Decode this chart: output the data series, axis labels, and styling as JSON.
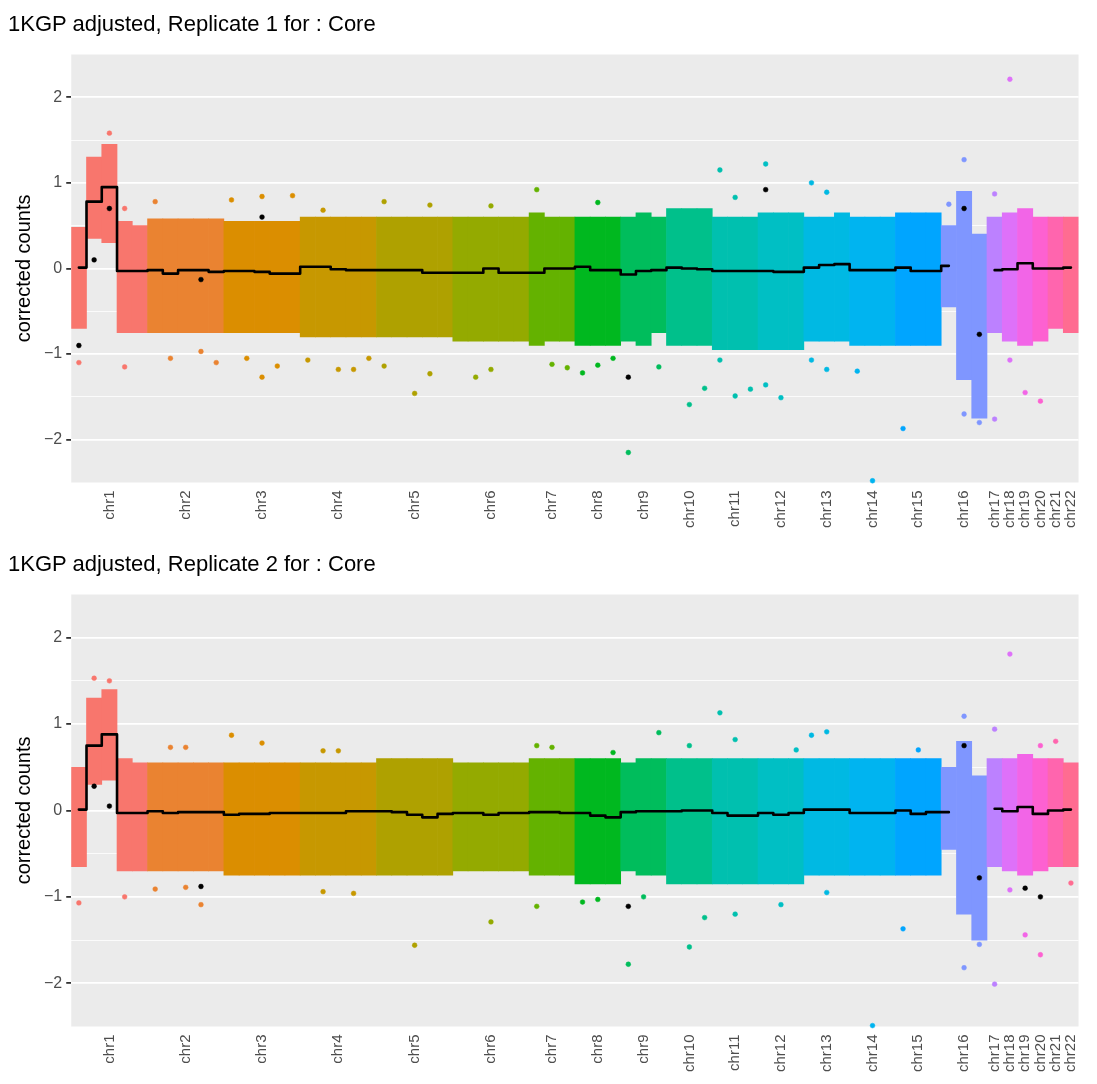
{
  "chart_data": [
    {
      "type": "bar",
      "title": "1KGP adjusted, Replicate 1 for : Core",
      "ylabel": "corrected counts",
      "ylim": [
        -2.5,
        2.5
      ],
      "grid": "y",
      "legend": false,
      "marker": "circle",
      "categories": [
        null,
        null,
        "chr1",
        null,
        null,
        null,
        null,
        "chr2",
        null,
        null,
        null,
        null,
        "chr3",
        null,
        null,
        null,
        null,
        "chr4",
        null,
        null,
        null,
        null,
        "chr5",
        null,
        null,
        null,
        null,
        "chr6",
        null,
        null,
        null,
        "chr7",
        null,
        null,
        "chr8",
        null,
        null,
        "chr9",
        null,
        null,
        "chr10",
        null,
        null,
        "chr11",
        null,
        null,
        "chr12",
        null,
        null,
        "chr13",
        null,
        null,
        "chr14",
        null,
        null,
        "chr15",
        null,
        null,
        "chr16",
        null,
        "chr17",
        "chr18",
        "chr19",
        "chr20",
        "chr21",
        "chr22"
      ],
      "yticks": [
        {
          "value": -2,
          "label": "−2"
        },
        {
          "value": -1.5,
          "label": null
        },
        {
          "value": -1,
          "label": "−1"
        },
        {
          "value": -0.5,
          "label": null
        },
        0,
        {
          "value": 0.5,
          "label": null
        },
        1,
        {
          "value": 1.5,
          "label": null
        },
        2
      ],
      "series": [
        {
          "colors": [
            "#f8766d",
            "#f8766d",
            "#f8766d",
            "#f8766d",
            "#f8766d",
            "#ea8331",
            "#ea8331",
            "#ea8331",
            "#ea8331",
            "#ea8331",
            "#db8e00",
            "#db8e00",
            "#db8e00",
            "#db8e00",
            "#db8e00",
            "#c79800",
            "#c79800",
            "#c79800",
            "#c79800",
            "#c79800",
            "#afa100",
            "#afa100",
            "#afa100",
            "#afa100",
            "#afa100",
            "#94aa00",
            "#94aa00",
            "#94aa00",
            "#94aa00",
            "#94aa00",
            "#64b200",
            "#64b200",
            "#64b200",
            "#00b81f",
            "#00b81f",
            "#00b81f",
            "#00bd5c",
            "#00bd5c",
            "#00bd5c",
            "#00c08b",
            "#00c08b",
            "#00c08b",
            "#00c0af",
            "#00c0af",
            "#00c0af",
            "#00bfc4",
            "#00bfc4",
            "#00bfc4",
            "#00b9e3",
            "#00b9e3",
            "#00b9e3",
            "#00b4f0",
            "#00b4f0",
            "#00b4f0",
            "#00a5ff",
            "#00a5ff",
            "#00a5ff",
            "#7f96ff",
            "#7f96ff",
            "#7f96ff",
            "#bc81ff",
            "#de71f9",
            "#f265e7",
            "#fd61d1",
            "#ff65ae",
            "#ff6c91"
          ],
          "base": [
            -0.7,
            0.35,
            0.3,
            -0.75,
            -0.75,
            -0.75,
            -0.75,
            -0.75,
            -0.75,
            -0.75,
            -0.75,
            -0.75,
            -0.75,
            -0.75,
            -0.75,
            -0.8,
            -0.8,
            -0.8,
            -0.8,
            -0.8,
            -0.8,
            -0.8,
            -0.8,
            -0.8,
            -0.8,
            -0.85,
            -0.85,
            -0.85,
            -0.85,
            -0.85,
            -0.9,
            -0.85,
            -0.85,
            -0.9,
            -0.9,
            -0.9,
            -0.85,
            -0.9,
            -0.75,
            -0.9,
            -0.9,
            -0.9,
            -0.95,
            -0.95,
            -0.95,
            -0.95,
            -0.95,
            -0.95,
            -0.85,
            -0.85,
            -0.85,
            -0.9,
            -0.9,
            -0.9,
            -0.9,
            -0.9,
            -0.9,
            -0.45,
            -1.3,
            -1.75,
            -0.75,
            -0.85,
            -0.9,
            -0.85,
            -0.7,
            -0.75
          ],
          "values": [
            1.18,
            0.95,
            1.15,
            1.3,
            1.25,
            1.33,
            1.33,
            1.33,
            1.33,
            1.33,
            1.3,
            1.3,
            1.3,
            1.3,
            1.3,
            1.4,
            1.4,
            1.4,
            1.4,
            1.4,
            1.4,
            1.4,
            1.4,
            1.4,
            1.4,
            1.45,
            1.45,
            1.45,
            1.45,
            1.45,
            1.55,
            1.45,
            1.45,
            1.5,
            1.5,
            1.5,
            1.45,
            1.55,
            1.35,
            1.6,
            1.6,
            1.6,
            1.55,
            1.55,
            1.55,
            1.6,
            1.6,
            1.6,
            1.45,
            1.45,
            1.5,
            1.5,
            1.5,
            1.5,
            1.55,
            1.55,
            1.55,
            0.95,
            2.2,
            2.15,
            1.35,
            1.5,
            1.6,
            1.45,
            1.3,
            1.35
          ]
        },
        {
          "type": "step",
          "color": "#000000",
          "marker": "none",
          "values": [
            0.01,
            0.78,
            0.95,
            -0.03,
            -0.03,
            -0.02,
            -0.06,
            -0.02,
            -0.02,
            -0.04,
            -0.03,
            -0.03,
            -0.04,
            -0.06,
            -0.06,
            0.02,
            0.02,
            -0.01,
            -0.02,
            -0.02,
            -0.02,
            -0.02,
            -0.02,
            -0.05,
            -0.05,
            -0.05,
            -0.05,
            0.0,
            -0.05,
            -0.05,
            -0.05,
            0.0,
            0.0,
            0.02,
            -0.02,
            -0.02,
            -0.07,
            -0.03,
            -0.02,
            0.01,
            0.0,
            -0.01,
            -0.03,
            -0.03,
            -0.03,
            -0.03,
            -0.04,
            -0.04,
            0.01,
            0.04,
            0.05,
            -0.02,
            -0.02,
            -0.02,
            0.01,
            -0.03,
            -0.03,
            0.03,
            null,
            null,
            -0.02,
            -0.01,
            0.06,
            0.0,
            0.0,
            0.01
          ]
        },
        {
          "type": "scatter",
          "colors": [
            "#f8766d",
            "#f8766d",
            "#f8766d",
            "#f8766d",
            "#f8766d",
            "#ea8331",
            "#ea8331",
            "#ea8331",
            "#ea8331",
            "#ea8331",
            "#db8e00",
            "#db8e00",
            "#db8e00",
            "#db8e00",
            "#db8e00",
            "#c79800",
            "#c79800",
            "#c79800",
            "#c79800",
            "#c79800",
            "#afa100",
            "#afa100",
            "#afa100",
            "#afa100",
            "#afa100",
            "#94aa00",
            "#94aa00",
            "#94aa00",
            "#94aa00",
            "#94aa00",
            "#64b200",
            "#64b200",
            "#64b200",
            "#00b81f",
            "#00b81f",
            "#00b81f",
            "#00bd5c",
            "#00bd5c",
            "#00bd5c",
            "#00c08b",
            "#00c08b",
            "#00c08b",
            "#00c0af",
            "#00c0af",
            "#00c0af",
            "#00bfc4",
            "#00bfc4",
            "#00bfc4",
            "#00b9e3",
            "#00b9e3",
            "#00b9e3",
            "#00b4f0",
            "#00b4f0",
            "#00b4f0",
            "#00a5ff",
            "#00a5ff",
            "#00a5ff",
            "#7f96ff",
            "#7f96ff",
            "#7f96ff",
            "#bc81ff",
            "#de71f9",
            "#f265e7",
            "#fd61d1",
            "#ff65ae",
            "#ff6c91"
          ],
          "values": [
            null,
            null,
            1.58,
            0.7,
            null,
            0.78,
            null,
            null,
            null,
            null,
            0.8,
            null,
            0.84,
            null,
            0.85,
            null,
            0.68,
            null,
            null,
            null,
            0.78,
            null,
            null,
            0.74,
            null,
            null,
            null,
            0.73,
            null,
            null,
            0.92,
            null,
            null,
            null,
            0.77,
            null,
            null,
            null,
            null,
            null,
            null,
            null,
            1.15,
            0.83,
            null,
            1.22,
            null,
            null,
            1.0,
            0.89,
            null,
            null,
            null,
            null,
            null,
            null,
            null,
            0.75,
            1.27,
            null,
            0.87,
            2.21,
            null,
            null,
            null,
            null
          ]
        },
        {
          "type": "scatter",
          "colors": [
            "#f8766d",
            "#f8766d",
            "#f8766d",
            "#f8766d",
            "#f8766d",
            "#ea8331",
            "#ea8331",
            "#ea8331",
            "#ea8331",
            "#ea8331",
            "#db8e00",
            "#db8e00",
            "#db8e00",
            "#db8e00",
            "#db8e00",
            "#c79800",
            "#c79800",
            "#c79800",
            "#c79800",
            "#c79800",
            "#afa100",
            "#afa100",
            "#afa100",
            "#afa100",
            "#afa100",
            "#94aa00",
            "#94aa00",
            "#94aa00",
            "#94aa00",
            "#94aa00",
            "#64b200",
            "#64b200",
            "#64b200",
            "#00b81f",
            "#00b81f",
            "#00b81f",
            "#00bd5c",
            "#00bd5c",
            "#00bd5c",
            "#00c08b",
            "#00c08b",
            "#00c08b",
            "#00c0af",
            "#00c0af",
            "#00c0af",
            "#00bfc4",
            "#00bfc4",
            "#00bfc4",
            "#00b9e3",
            "#00b9e3",
            "#00b9e3",
            "#00b4f0",
            "#00b4f0",
            "#00b4f0",
            "#00a5ff",
            "#00a5ff",
            "#00a5ff",
            "#7f96ff",
            "#7f96ff",
            "#7f96ff",
            "#bc81ff",
            "#de71f9",
            "#f265e7",
            "#fd61d1",
            "#ff65ae",
            "#ff6c91"
          ],
          "values": [
            -1.1,
            null,
            null,
            -1.15,
            null,
            null,
            -1.05,
            null,
            -0.97,
            -1.1,
            null,
            -1.05,
            -1.27,
            -1.14,
            null,
            -1.07,
            null,
            -1.18,
            -1.18,
            -1.05,
            -1.14,
            null,
            -1.46,
            -1.23,
            null,
            null,
            -1.27,
            -1.18,
            null,
            null,
            null,
            -1.12,
            -1.16,
            -1.22,
            -1.13,
            -1.05,
            -2.15,
            null,
            -1.15,
            null,
            -1.59,
            -1.4,
            -1.07,
            -1.49,
            -1.41,
            -1.36,
            -1.51,
            null,
            -1.07,
            -1.18,
            null,
            -1.2,
            -2.48,
            null,
            -1.87,
            null,
            null,
            null,
            -1.7,
            -1.8,
            -1.76,
            -1.07,
            -1.45,
            -1.55,
            null,
            null
          ]
        },
        {
          "type": "scatter",
          "color": "#000000",
          "values": [
            -0.9,
            0.1,
            0.7,
            null,
            null,
            null,
            null,
            null,
            -0.13,
            null,
            null,
            null,
            0.6,
            null,
            null,
            null,
            null,
            null,
            null,
            null,
            null,
            null,
            null,
            null,
            null,
            null,
            null,
            null,
            null,
            null,
            null,
            null,
            null,
            null,
            null,
            null,
            -1.27,
            null,
            null,
            null,
            null,
            null,
            null,
            null,
            null,
            0.92,
            null,
            null,
            null,
            null,
            null,
            null,
            null,
            null,
            null,
            null,
            null,
            null,
            0.7,
            -0.77,
            null,
            null,
            null,
            null,
            null,
            null
          ]
        }
      ]
    },
    {
      "type": "bar",
      "title": "1KGP adjusted, Replicate 2 for : Core",
      "ylabel": "corrected counts",
      "ylim": [
        -2.5,
        2.5
      ],
      "grid": "y",
      "legend": false,
      "marker": "circle",
      "categories": [
        null,
        null,
        "chr1",
        null,
        null,
        null,
        null,
        "chr2",
        null,
        null,
        null,
        null,
        "chr3",
        null,
        null,
        null,
        null,
        "chr4",
        null,
        null,
        null,
        null,
        "chr5",
        null,
        null,
        null,
        null,
        "chr6",
        null,
        null,
        null,
        "chr7",
        null,
        null,
        "chr8",
        null,
        null,
        "chr9",
        null,
        null,
        "chr10",
        null,
        null,
        "chr11",
        null,
        null,
        "chr12",
        null,
        null,
        "chr13",
        null,
        null,
        "chr14",
        null,
        null,
        "chr15",
        null,
        null,
        "chr16",
        null,
        "chr17",
        "chr18",
        "chr19",
        "chr20",
        "chr21",
        "chr22"
      ],
      "yticks": [
        {
          "value": -2,
          "label": "−2"
        },
        {
          "value": -1.5,
          "label": null
        },
        {
          "value": -1,
          "label": "−1"
        },
        {
          "value": -0.5,
          "label": null
        },
        0,
        {
          "value": 0.5,
          "label": null
        },
        1,
        {
          "value": 1.5,
          "label": null
        },
        2
      ],
      "series": [
        {
          "colors": [
            "#f8766d",
            "#f8766d",
            "#f8766d",
            "#f8766d",
            "#f8766d",
            "#ea8331",
            "#ea8331",
            "#ea8331",
            "#ea8331",
            "#ea8331",
            "#db8e00",
            "#db8e00",
            "#db8e00",
            "#db8e00",
            "#db8e00",
            "#c79800",
            "#c79800",
            "#c79800",
            "#c79800",
            "#c79800",
            "#afa100",
            "#afa100",
            "#afa100",
            "#afa100",
            "#afa100",
            "#94aa00",
            "#94aa00",
            "#94aa00",
            "#94aa00",
            "#94aa00",
            "#64b200",
            "#64b200",
            "#64b200",
            "#00b81f",
            "#00b81f",
            "#00b81f",
            "#00bd5c",
            "#00bd5c",
            "#00bd5c",
            "#00c08b",
            "#00c08b",
            "#00c08b",
            "#00c0af",
            "#00c0af",
            "#00c0af",
            "#00bfc4",
            "#00bfc4",
            "#00bfc4",
            "#00b9e3",
            "#00b9e3",
            "#00b9e3",
            "#00b4f0",
            "#00b4f0",
            "#00b4f0",
            "#00a5ff",
            "#00a5ff",
            "#00a5ff",
            "#7f96ff",
            "#7f96ff",
            "#7f96ff",
            "#bc81ff",
            "#de71f9",
            "#f265e7",
            "#fd61d1",
            "#ff65ae",
            "#ff6c91"
          ],
          "base": [
            -0.65,
            0.3,
            0.35,
            -0.7,
            -0.7,
            -0.7,
            -0.7,
            -0.7,
            -0.7,
            -0.7,
            -0.75,
            -0.75,
            -0.75,
            -0.75,
            -0.75,
            -0.75,
            -0.75,
            -0.75,
            -0.75,
            -0.75,
            -0.75,
            -0.75,
            -0.75,
            -0.75,
            -0.75,
            -0.7,
            -0.7,
            -0.7,
            -0.7,
            -0.7,
            -0.75,
            -0.75,
            -0.75,
            -0.85,
            -0.85,
            -0.85,
            -0.7,
            -0.75,
            -0.75,
            -0.85,
            -0.85,
            -0.85,
            -0.85,
            -0.85,
            -0.85,
            -0.85,
            -0.85,
            -0.85,
            -0.75,
            -0.75,
            -0.75,
            -0.75,
            -0.75,
            -0.75,
            -0.75,
            -0.75,
            -0.75,
            -0.45,
            -1.2,
            -1.5,
            -0.65,
            -0.7,
            -0.75,
            -0.7,
            -0.65,
            -0.65
          ],
          "values": [
            1.15,
            1.0,
            1.05,
            1.3,
            1.25,
            1.25,
            1.25,
            1.25,
            1.25,
            1.25,
            1.3,
            1.3,
            1.3,
            1.3,
            1.3,
            1.3,
            1.3,
            1.3,
            1.3,
            1.3,
            1.35,
            1.35,
            1.35,
            1.35,
            1.35,
            1.25,
            1.25,
            1.25,
            1.25,
            1.25,
            1.35,
            1.35,
            1.35,
            1.45,
            1.45,
            1.45,
            1.25,
            1.35,
            1.35,
            1.45,
            1.45,
            1.45,
            1.45,
            1.45,
            1.45,
            1.45,
            1.45,
            1.45,
            1.35,
            1.35,
            1.35,
            1.35,
            1.35,
            1.35,
            1.35,
            1.35,
            1.35,
            0.95,
            2.0,
            1.9,
            1.25,
            1.3,
            1.4,
            1.3,
            1.25,
            1.2
          ]
        },
        {
          "type": "step",
          "color": "#000000",
          "marker": "none",
          "values": [
            0.01,
            0.75,
            0.88,
            -0.03,
            -0.03,
            -0.01,
            -0.03,
            -0.02,
            -0.02,
            -0.02,
            -0.05,
            -0.04,
            -0.04,
            -0.03,
            -0.03,
            -0.03,
            -0.03,
            -0.03,
            -0.01,
            -0.01,
            -0.01,
            -0.02,
            -0.05,
            -0.08,
            -0.04,
            -0.03,
            -0.03,
            -0.05,
            -0.03,
            -0.03,
            -0.02,
            -0.02,
            -0.03,
            -0.03,
            -0.06,
            -0.08,
            -0.02,
            -0.01,
            -0.01,
            -0.01,
            0.0,
            0.0,
            -0.03,
            -0.06,
            -0.06,
            -0.03,
            -0.05,
            -0.03,
            0.01,
            0.01,
            0.01,
            -0.03,
            -0.03,
            -0.03,
            0.0,
            -0.04,
            -0.02,
            -0.02,
            null,
            null,
            0.02,
            -0.01,
            0.04,
            -0.04,
            0.0,
            0.01
          ]
        },
        {
          "type": "scatter",
          "colors": [
            "#f8766d",
            "#f8766d",
            "#f8766d",
            "#f8766d",
            "#f8766d",
            "#ea8331",
            "#ea8331",
            "#ea8331",
            "#ea8331",
            "#ea8331",
            "#db8e00",
            "#db8e00",
            "#db8e00",
            "#db8e00",
            "#db8e00",
            "#c79800",
            "#c79800",
            "#c79800",
            "#c79800",
            "#c79800",
            "#afa100",
            "#afa100",
            "#afa100",
            "#afa100",
            "#afa100",
            "#94aa00",
            "#94aa00",
            "#94aa00",
            "#94aa00",
            "#94aa00",
            "#64b200",
            "#64b200",
            "#64b200",
            "#00b81f",
            "#00b81f",
            "#00b81f",
            "#00bd5c",
            "#00bd5c",
            "#00bd5c",
            "#00c08b",
            "#00c08b",
            "#00c08b",
            "#00c0af",
            "#00c0af",
            "#00c0af",
            "#00bfc4",
            "#00bfc4",
            "#00bfc4",
            "#00b9e3",
            "#00b9e3",
            "#00b9e3",
            "#00b4f0",
            "#00b4f0",
            "#00b4f0",
            "#00a5ff",
            "#00a5ff",
            "#00a5ff",
            "#7f96ff",
            "#7f96ff",
            "#7f96ff",
            "#bc81ff",
            "#de71f9",
            "#f265e7",
            "#fd61d1",
            "#ff65ae",
            "#ff6c91"
          ],
          "values": [
            null,
            1.53,
            1.5,
            null,
            null,
            null,
            0.73,
            0.73,
            null,
            null,
            0.87,
            null,
            0.78,
            null,
            null,
            null,
            0.69,
            0.69,
            null,
            null,
            null,
            null,
            null,
            null,
            null,
            null,
            null,
            null,
            null,
            null,
            0.75,
            0.73,
            null,
            null,
            null,
            0.67,
            null,
            null,
            0.9,
            null,
            0.75,
            null,
            1.13,
            0.82,
            null,
            null,
            null,
            0.7,
            0.87,
            0.91,
            null,
            null,
            null,
            null,
            null,
            0.7,
            null,
            null,
            1.09,
            null,
            0.94,
            1.81,
            null,
            0.75,
            0.8,
            null
          ]
        },
        {
          "type": "scatter",
          "colors": [
            "#f8766d",
            "#f8766d",
            "#f8766d",
            "#f8766d",
            "#f8766d",
            "#ea8331",
            "#ea8331",
            "#ea8331",
            "#ea8331",
            "#ea8331",
            "#db8e00",
            "#db8e00",
            "#db8e00",
            "#db8e00",
            "#db8e00",
            "#c79800",
            "#c79800",
            "#c79800",
            "#c79800",
            "#c79800",
            "#afa100",
            "#afa100",
            "#afa100",
            "#afa100",
            "#afa100",
            "#94aa00",
            "#94aa00",
            "#94aa00",
            "#94aa00",
            "#94aa00",
            "#64b200",
            "#64b200",
            "#64b200",
            "#00b81f",
            "#00b81f",
            "#00b81f",
            "#00bd5c",
            "#00bd5c",
            "#00bd5c",
            "#00c08b",
            "#00c08b",
            "#00c08b",
            "#00c0af",
            "#00c0af",
            "#00c0af",
            "#00bfc4",
            "#00bfc4",
            "#00bfc4",
            "#00b9e3",
            "#00b9e3",
            "#00b9e3",
            "#00b4f0",
            "#00b4f0",
            "#00b4f0",
            "#00a5ff",
            "#00a5ff",
            "#00a5ff",
            "#7f96ff",
            "#7f96ff",
            "#7f96ff",
            "#bc81ff",
            "#de71f9",
            "#f265e7",
            "#fd61d1",
            "#ff65ae",
            "#ff6c91"
          ],
          "values": [
            -1.07,
            null,
            null,
            -1.0,
            null,
            -0.91,
            null,
            -0.89,
            -1.09,
            null,
            null,
            null,
            null,
            null,
            null,
            null,
            -0.94,
            null,
            -0.96,
            null,
            null,
            null,
            -1.56,
            null,
            null,
            null,
            null,
            -1.29,
            null,
            null,
            -1.11,
            null,
            null,
            -1.06,
            -1.03,
            null,
            -1.78,
            -1.0,
            null,
            null,
            -1.58,
            -1.24,
            null,
            -1.2,
            null,
            null,
            -1.09,
            null,
            null,
            -0.95,
            null,
            null,
            -2.49,
            null,
            -1.37,
            null,
            null,
            null,
            -1.82,
            -1.55,
            -2.01,
            -0.92,
            -1.44,
            -1.67,
            null,
            -0.84
          ]
        },
        {
          "type": "scatter",
          "color": "#000000",
          "values": [
            null,
            0.28,
            0.05,
            null,
            null,
            null,
            null,
            null,
            -0.88,
            null,
            null,
            null,
            null,
            null,
            null,
            null,
            null,
            null,
            null,
            null,
            null,
            null,
            null,
            null,
            null,
            null,
            null,
            null,
            null,
            null,
            null,
            null,
            null,
            null,
            null,
            null,
            -1.11,
            null,
            null,
            null,
            null,
            null,
            null,
            null,
            null,
            null,
            null,
            null,
            null,
            null,
            null,
            null,
            null,
            null,
            null,
            null,
            null,
            null,
            0.75,
            -0.78,
            null,
            null,
            -0.9,
            -1.0,
            null,
            null
          ]
        }
      ]
    }
  ]
}
